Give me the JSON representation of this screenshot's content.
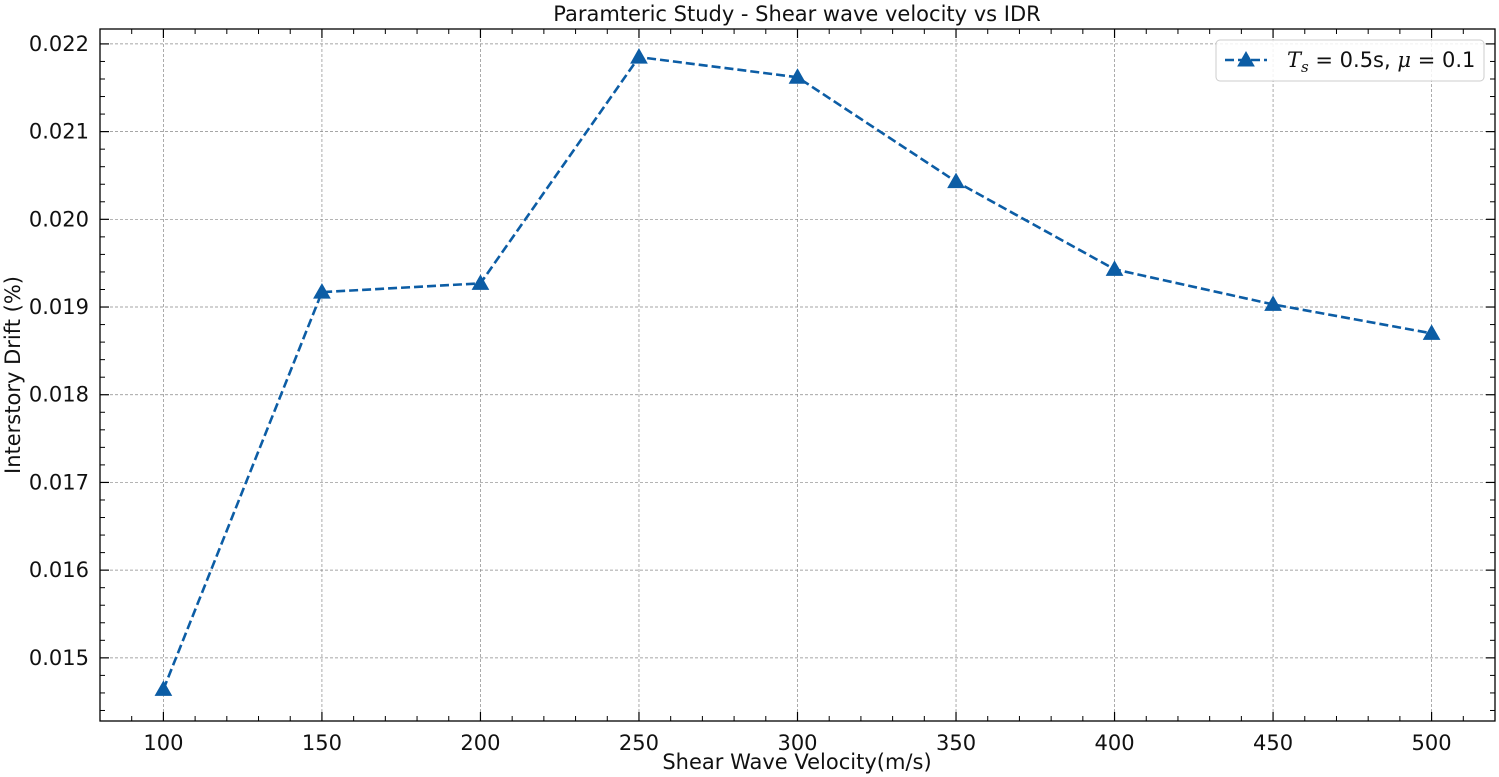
{
  "chart_data": {
    "type": "line",
    "title": "Paramteric Study - Shear wave velocity vs IDR",
    "xlabel": "Shear Wave Velocity(m/s)",
    "ylabel": "Interstory Drift (%)",
    "xlim": [
      80,
      520
    ],
    "ylim": [
      0.01428,
      0.02217
    ],
    "x_major_ticks": [
      100,
      150,
      200,
      250,
      300,
      350,
      400,
      450,
      500
    ],
    "x_minor_step": 10,
    "y_major_ticks": [
      0.015,
      0.016,
      0.017,
      0.018,
      0.019,
      0.02,
      0.021,
      0.022
    ],
    "y_minor_step": 0.0002,
    "x_tick_labels": [
      "100",
      "150",
      "200",
      "250",
      "300",
      "350",
      "400",
      "450",
      "500"
    ],
    "y_tick_labels": [
      "0.015",
      "0.016",
      "0.017",
      "0.018",
      "0.019",
      "0.020",
      "0.021",
      "0.022"
    ],
    "grid": true,
    "legend_position": "top-right",
    "series": [
      {
        "name": "T_s = 0.5s, μ = 0.1",
        "color": "#0C5DA5",
        "line_style": "dashed",
        "marker": "triangle-up",
        "x": [
          100,
          150,
          200,
          250,
          300,
          350,
          400,
          450,
          500
        ],
        "y": [
          0.01464,
          0.01917,
          0.01927,
          0.02185,
          0.02162,
          0.02043,
          0.01943,
          0.01903,
          0.0187
        ]
      }
    ],
    "legend": {
      "label_parts": [
        "T",
        "s",
        " = 0.5s, ",
        "μ",
        " = 0.1"
      ]
    }
  }
}
